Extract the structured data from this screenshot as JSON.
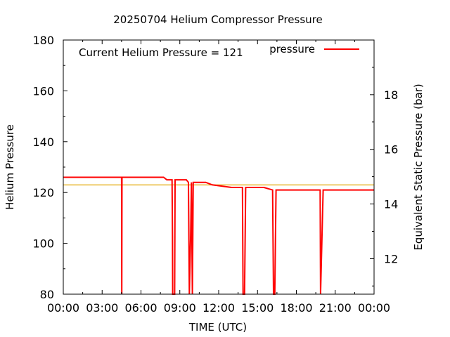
{
  "chart_data": {
    "type": "line",
    "title": "20250704 Helium Compressor Pressure",
    "xlabel": "TIME (UTC)",
    "ylabel": "Helium Pressure",
    "y2label": "Equivalent Static Pressure (bar)",
    "annotation": "Current Helium Pressure = 121",
    "legend": {
      "position": "top-right",
      "entries": [
        {
          "name": "pressure",
          "color": "#ff0000"
        }
      ]
    },
    "xlim": [
      "00:00",
      "24:00"
    ],
    "ylim": [
      80,
      180
    ],
    "y2lim": [
      10.7,
      20.0
    ],
    "x_ticks": [
      "00:00",
      "03:00",
      "06:00",
      "09:00",
      "12:00",
      "15:00",
      "18:00",
      "21:00",
      "00:00"
    ],
    "y_ticks": [
      80,
      100,
      120,
      140,
      160,
      180
    ],
    "y2_ticks": [
      12,
      14,
      16,
      18
    ],
    "grid": false,
    "reference_line": {
      "value": 123,
      "color": "#e8b830"
    },
    "series": [
      {
        "name": "pressure",
        "color": "#ff0000",
        "points": [
          [
            "00:00",
            126
          ],
          [
            "04:30",
            126
          ],
          [
            "04:31",
            80
          ],
          [
            "04:32",
            126
          ],
          [
            "07:45",
            126
          ],
          [
            "08:00",
            125
          ],
          [
            "08:24",
            125
          ],
          [
            "08:26",
            103
          ],
          [
            "08:27",
            80
          ],
          [
            "08:36",
            80
          ],
          [
            "08:38",
            125
          ],
          [
            "09:30",
            125
          ],
          [
            "09:40",
            124
          ],
          [
            "09:44",
            80
          ],
          [
            "09:50",
            103
          ],
          [
            "09:54",
            124
          ],
          [
            "09:58",
            80
          ],
          [
            "10:02",
            124
          ],
          [
            "11:00",
            124
          ],
          [
            "11:30",
            123
          ],
          [
            "13:00",
            122
          ],
          [
            "13:50",
            122
          ],
          [
            "13:53",
            80
          ],
          [
            "14:00",
            80
          ],
          [
            "14:05",
            122
          ],
          [
            "15:30",
            122
          ],
          [
            "16:10",
            121
          ],
          [
            "16:14",
            80
          ],
          [
            "16:20",
            80
          ],
          [
            "16:26",
            121
          ],
          [
            "19:50",
            121
          ],
          [
            "19:52",
            80
          ],
          [
            "19:58",
            100
          ],
          [
            "20:04",
            121
          ],
          [
            "24:00",
            121
          ]
        ]
      }
    ]
  }
}
